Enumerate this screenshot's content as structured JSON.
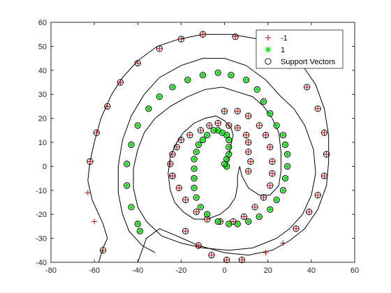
{
  "chart_data": {
    "type": "scatter",
    "title": "",
    "xlabel": "",
    "ylabel": "",
    "xlim": [
      -80,
      60
    ],
    "ylim": [
      -40,
      60
    ],
    "xticks": [
      -80,
      -60,
      -40,
      -20,
      0,
      20,
      40,
      60
    ],
    "yticks": [
      -40,
      -30,
      -20,
      -10,
      0,
      10,
      20,
      30,
      40,
      50,
      60
    ],
    "grid": false,
    "legend_position": "top-right",
    "legend": [
      "-1",
      "1",
      "Support Vectors"
    ],
    "colors": {
      "neg": "#cc0000",
      "pos": "#00dd00",
      "sv": "#000000",
      "boundary": "#000000"
    },
    "series": [
      {
        "name": "-1",
        "marker": "plus",
        "points": [
          [
            11,
            -2
          ],
          [
            12,
            2
          ],
          [
            11,
            6
          ],
          [
            11,
            10
          ],
          [
            10,
            13
          ],
          [
            6,
            16
          ],
          [
            2,
            17
          ],
          [
            -3,
            18
          ],
          [
            -7,
            17
          ],
          [
            -11,
            15
          ],
          [
            -16,
            13
          ],
          [
            -20,
            11
          ],
          [
            -22,
            8
          ],
          [
            -24,
            5
          ],
          [
            -25,
            1
          ],
          [
            -24,
            -4
          ],
          [
            0,
            23
          ],
          [
            6,
            23
          ],
          [
            11,
            21
          ],
          [
            16,
            17
          ],
          [
            19,
            13
          ],
          [
            21,
            8
          ],
          [
            22,
            2
          ],
          [
            22,
            -3
          ],
          [
            21,
            -8
          ],
          [
            18,
            -13
          ],
          [
            14,
            -17
          ],
          [
            9,
            -21
          ],
          [
            4,
            -23
          ],
          [
            -2,
            -23
          ],
          [
            -8,
            -22
          ],
          [
            -13,
            -19
          ],
          [
            -18,
            -14
          ],
          [
            -21,
            -9
          ],
          [
            -24,
            -4
          ],
          [
            -18,
            -27
          ],
          [
            -12,
            -33
          ],
          [
            -6,
            -37
          ],
          [
            1,
            -39
          ],
          [
            8,
            -39
          ],
          [
            19,
            -36
          ],
          [
            27,
            -32
          ],
          [
            33,
            -26
          ],
          [
            39,
            -19
          ],
          [
            43,
            -12
          ],
          [
            46,
            -4
          ],
          [
            47,
            5
          ],
          [
            46,
            14
          ],
          [
            43,
            24
          ],
          [
            38,
            33
          ],
          [
            30,
            42
          ],
          [
            19,
            51
          ],
          [
            5,
            54
          ],
          [
            -10,
            55
          ],
          [
            -20,
            53
          ],
          [
            -30,
            49
          ],
          [
            -40,
            43
          ],
          [
            -48,
            35
          ],
          [
            -54,
            25
          ],
          [
            -59,
            14
          ],
          [
            -62,
            2
          ],
          [
            -63,
            -11
          ],
          [
            -60,
            -23
          ],
          [
            -56,
            -35
          ]
        ]
      },
      {
        "name": "1",
        "marker": "star",
        "points": [
          [
            1,
            0
          ],
          [
            0,
            1
          ],
          [
            1,
            3
          ],
          [
            2,
            5
          ],
          [
            2,
            8
          ],
          [
            2,
            11
          ],
          [
            1,
            13
          ],
          [
            -1,
            14
          ],
          [
            -3,
            15
          ],
          [
            -5,
            15
          ],
          [
            -8,
            13
          ],
          [
            -10,
            11
          ],
          [
            -12,
            9
          ],
          [
            -13,
            6
          ],
          [
            -14,
            3
          ],
          [
            -14,
            -1
          ],
          [
            -14,
            -5
          ],
          [
            -14,
            -9
          ],
          [
            -13,
            -13
          ],
          [
            -11,
            -17
          ],
          [
            -8,
            -20
          ],
          [
            -3,
            -23
          ],
          [
            2,
            -24
          ],
          [
            6,
            -24
          ],
          [
            11,
            -23
          ],
          [
            16,
            -21
          ],
          [
            21,
            -18
          ],
          [
            24,
            -14
          ],
          [
            27,
            -10
          ],
          [
            28,
            -5
          ],
          [
            29,
            0
          ],
          [
            29,
            5
          ],
          [
            28,
            9
          ],
          [
            27,
            13
          ],
          [
            24,
            17
          ],
          [
            21,
            22
          ],
          [
            18,
            27
          ],
          [
            15,
            32
          ],
          [
            10,
            36
          ],
          [
            3,
            38
          ],
          [
            -3,
            39
          ],
          [
            -10,
            38
          ],
          [
            -17,
            36
          ],
          [
            -24,
            33
          ],
          [
            -30,
            29
          ],
          [
            -35,
            24
          ],
          [
            -40,
            17
          ],
          [
            -43,
            9
          ],
          [
            -45,
            1
          ],
          [
            -45,
            -8
          ],
          [
            -43,
            -17
          ],
          [
            -40,
            -24
          ],
          [
            -39,
            -27
          ]
        ]
      }
    ],
    "boundary": [
      [
        -58,
        -40
      ],
      [
        -56,
        -34
      ],
      [
        -54,
        -30
      ],
      [
        -55,
        -27
      ],
      [
        -56,
        -24
      ],
      [
        -58,
        -20
      ],
      [
        -61,
        -14
      ],
      [
        -63,
        -6
      ],
      [
        -62,
        2
      ],
      [
        -60,
        10
      ],
      [
        -57,
        20
      ],
      [
        -52,
        30
      ],
      [
        -47,
        37
      ],
      [
        -40,
        44
      ],
      [
        -31,
        50
      ],
      [
        -21,
        53
      ],
      [
        -10,
        55
      ],
      [
        3,
        55
      ],
      [
        16,
        53
      ],
      [
        27,
        49
      ],
      [
        36,
        42
      ],
      [
        42,
        34
      ],
      [
        46,
        24
      ],
      [
        48,
        13
      ],
      [
        48,
        2
      ],
      [
        47,
        -8
      ],
      [
        43,
        -18
      ],
      [
        37,
        -26
      ],
      [
        30,
        -31
      ],
      [
        22,
        -35
      ],
      [
        11,
        -37
      ],
      [
        0,
        -36
      ],
      [
        -12,
        -33
      ],
      [
        -22,
        -29
      ],
      [
        -30,
        -26
      ],
      [
        -36,
        -30
      ],
      [
        -40,
        -40
      ],
      null,
      [
        7,
        0
      ],
      [
        8,
        -4
      ],
      [
        11,
        -9
      ],
      [
        16,
        -12
      ],
      [
        21,
        -12
      ],
      [
        25,
        -8
      ],
      [
        26,
        -2
      ],
      [
        26,
        6
      ],
      [
        25,
        14
      ],
      [
        22,
        20
      ],
      [
        18,
        25
      ],
      [
        13,
        29
      ],
      [
        6,
        31
      ],
      [
        -1,
        33
      ],
      [
        -9,
        32
      ],
      [
        -17,
        29
      ],
      [
        -25,
        25
      ],
      [
        -32,
        20
      ],
      [
        -37,
        14
      ],
      [
        -40,
        7
      ],
      [
        -42,
        -1
      ],
      [
        -42,
        -9
      ],
      [
        -40,
        -17
      ],
      [
        -36,
        -23
      ],
      [
        -29,
        -29
      ],
      [
        -20,
        -32
      ],
      [
        -10,
        -34
      ],
      [
        2,
        -35
      ],
      [
        13,
        -34
      ],
      [
        24,
        -30
      ],
      [
        30,
        -26
      ],
      [
        36,
        -20
      ],
      [
        40,
        -12
      ],
      [
        42,
        -3
      ],
      [
        41,
        7
      ],
      [
        37,
        17
      ],
      [
        32,
        24
      ],
      [
        26,
        29
      ],
      [
        19,
        36
      ],
      [
        10,
        42
      ],
      [
        0,
        45
      ],
      [
        -10,
        45
      ],
      [
        -20,
        42
      ],
      [
        -30,
        37
      ],
      [
        -37,
        30
      ],
      [
        -43,
        21
      ],
      [
        -47,
        11
      ],
      [
        -49,
        0
      ],
      [
        -49,
        -11
      ],
      [
        -47,
        -20
      ],
      [
        -44,
        -27
      ],
      [
        -38,
        -33
      ],
      [
        -32,
        -36
      ],
      null,
      [
        1,
        0
      ],
      [
        2,
        4
      ],
      [
        3,
        9
      ],
      [
        4,
        13
      ],
      [
        3,
        16
      ],
      [
        0,
        19
      ],
      [
        -4,
        21
      ],
      [
        -9,
        20
      ],
      [
        -14,
        18
      ],
      [
        -19,
        14
      ],
      [
        -22,
        10
      ],
      [
        -25,
        4
      ],
      [
        -26,
        -3
      ],
      [
        -25,
        -10
      ],
      [
        -23,
        -15
      ],
      [
        -19,
        -19
      ],
      [
        -14,
        -22
      ],
      [
        -8,
        -22
      ],
      [
        -2,
        -20
      ],
      [
        2,
        -17
      ],
      [
        5,
        -13
      ],
      [
        6,
        -8
      ],
      [
        6,
        -4
      ],
      [
        7,
        0
      ]
    ]
  }
}
